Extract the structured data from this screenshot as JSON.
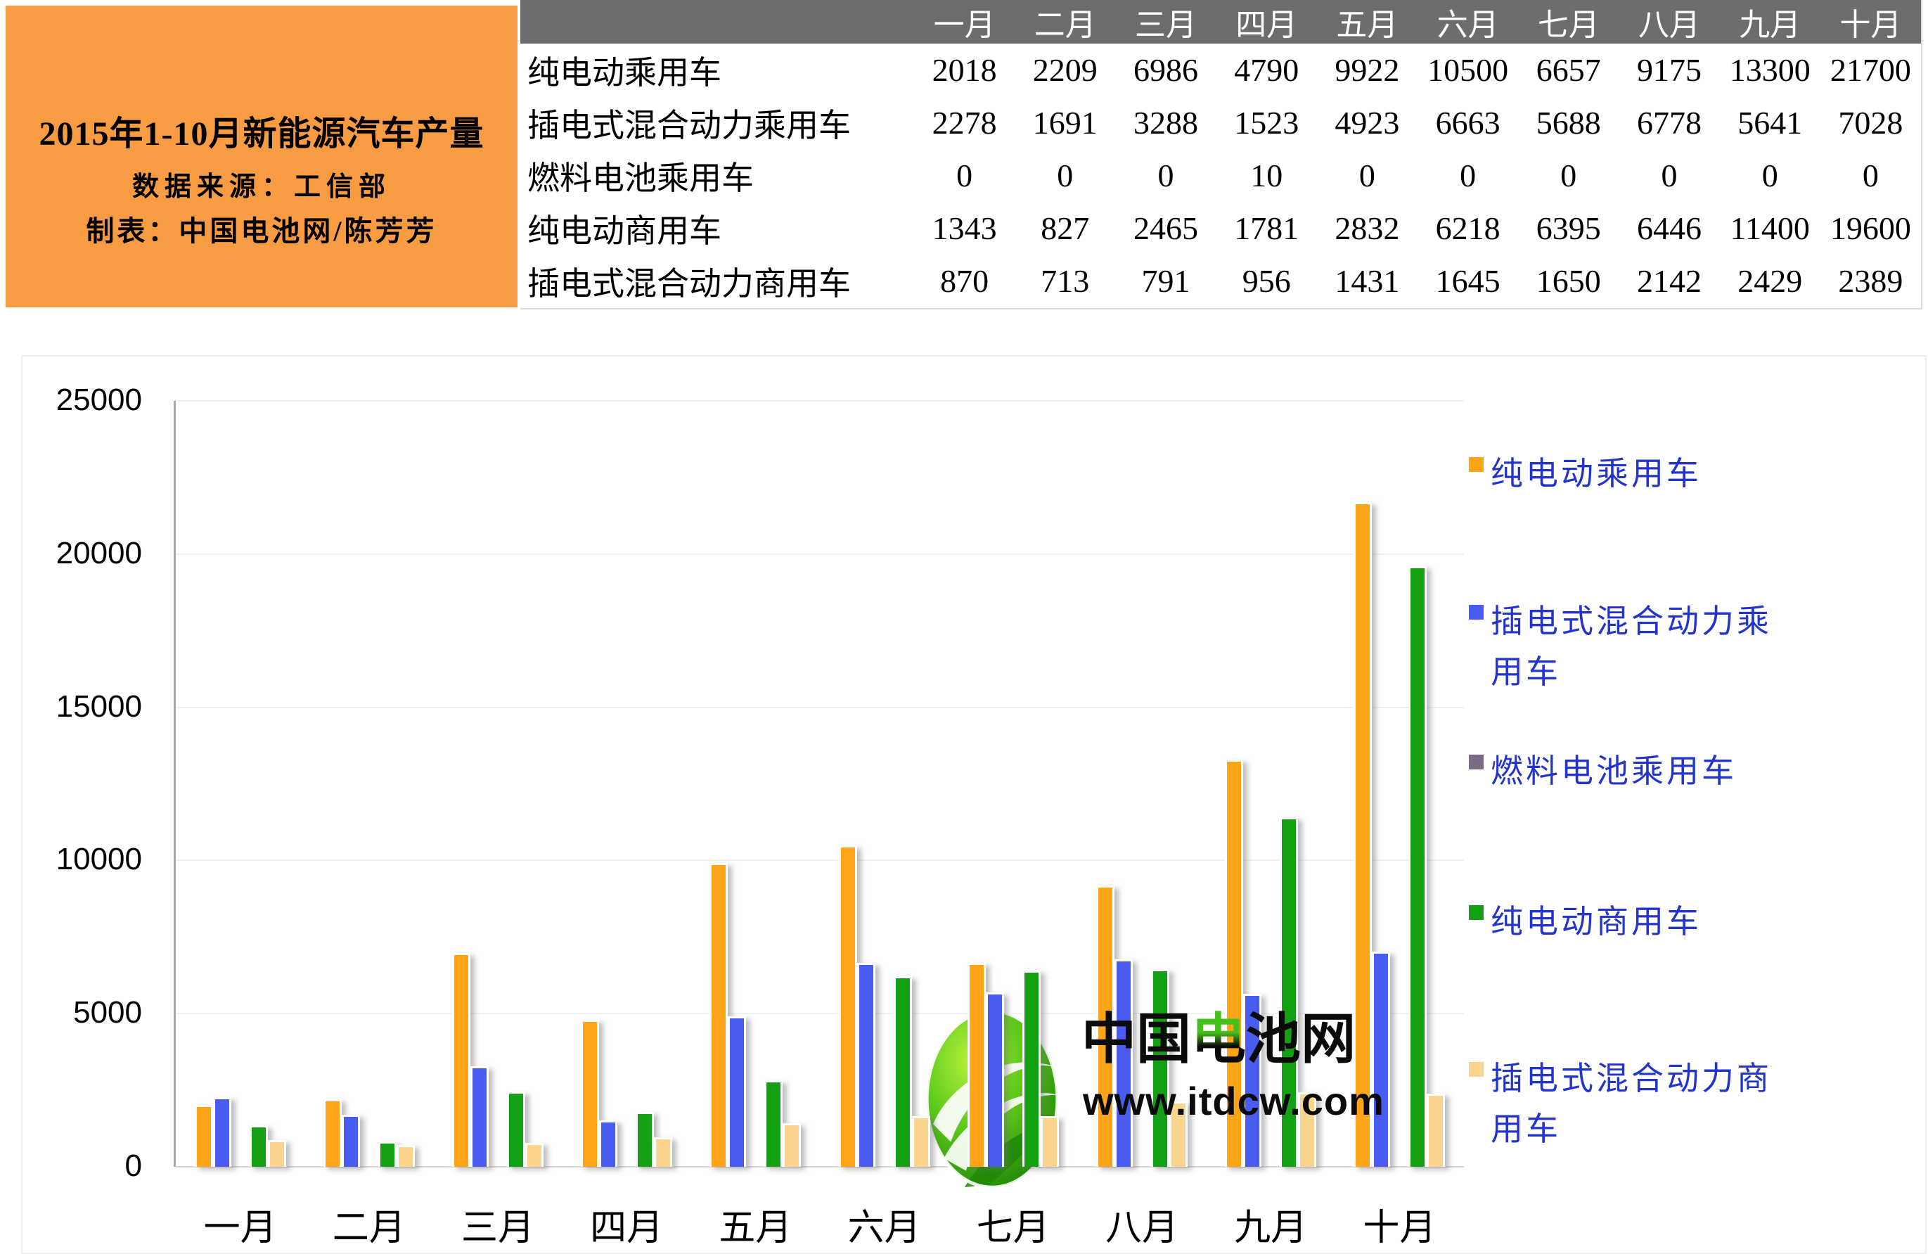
{
  "info_card": {
    "title": "2015年1-10月新能源汽车产量",
    "source": "数据来源：工信部",
    "author": "制表：中国电池网/陈芳芳"
  },
  "table": {
    "corner_label": "",
    "months": [
      "一月",
      "二月",
      "三月",
      "四月",
      "五月",
      "六月",
      "七月",
      "八月",
      "九月",
      "十月"
    ],
    "rows": [
      {
        "label": "纯电动乘用车",
        "values": [
          2018,
          2209,
          6986,
          4790,
          9922,
          10500,
          6657,
          9175,
          13300,
          21700
        ]
      },
      {
        "label": "插电式混合动力乘用车",
        "values": [
          2278,
          1691,
          3288,
          1523,
          4923,
          6663,
          5688,
          6778,
          5641,
          7028
        ]
      },
      {
        "label": "燃料电池乘用车",
        "values": [
          0,
          0,
          0,
          10,
          0,
          0,
          0,
          0,
          0,
          0
        ]
      },
      {
        "label": "纯电动商用车",
        "values": [
          1343,
          827,
          2465,
          1781,
          2832,
          6218,
          6395,
          6446,
          11400,
          19600
        ]
      },
      {
        "label": "插电式混合动力商用车",
        "values": [
          870,
          713,
          791,
          956,
          1431,
          1645,
          1650,
          2142,
          2429,
          2389
        ]
      }
    ]
  },
  "chart_data": {
    "type": "bar",
    "title": "",
    "xlabel": "",
    "ylabel": "",
    "categories": [
      "一月",
      "二月",
      "三月",
      "四月",
      "五月",
      "六月",
      "七月",
      "八月",
      "九月",
      "十月"
    ],
    "series": [
      {
        "name": "纯电动乘用车",
        "color": "#FFA318",
        "values": [
          2018,
          2209,
          6986,
          4790,
          9922,
          10500,
          6657,
          9175,
          13300,
          21700
        ]
      },
      {
        "name": "插电式混合动力乘用车",
        "color": "#4A5CEF",
        "values": [
          2278,
          1691,
          3288,
          1523,
          4923,
          6663,
          5688,
          6778,
          5641,
          7028
        ]
      },
      {
        "name": "燃料电池乘用车",
        "color": "#7A6B85",
        "values": [
          0,
          0,
          0,
          10,
          0,
          0,
          0,
          0,
          0,
          0
        ]
      },
      {
        "name": "纯电动商用车",
        "color": "#14A014",
        "values": [
          1343,
          827,
          2465,
          1781,
          2832,
          6218,
          6395,
          6446,
          11400,
          19600
        ]
      },
      {
        "name": "插电式混合动力商用车",
        "color": "#FBD58D",
        "values": [
          870,
          713,
          791,
          956,
          1431,
          1645,
          1650,
          2142,
          2429,
          2389
        ]
      }
    ],
    "ylim": [
      0,
      25000
    ],
    "yticks": [
      0,
      5000,
      10000,
      15000,
      20000,
      25000
    ],
    "grid": true,
    "legend_position": "right",
    "legend_text_color": "#2334CC"
  },
  "watermark": {
    "name": "中国电池网",
    "green_char": "电",
    "url": "www.itdcw.com"
  },
  "colors": {
    "card_bg": "#F79C42",
    "table_header_bg": "#6D6D6D",
    "axis_line": "#A8A8A8",
    "gridline": "#F1F1F1"
  }
}
